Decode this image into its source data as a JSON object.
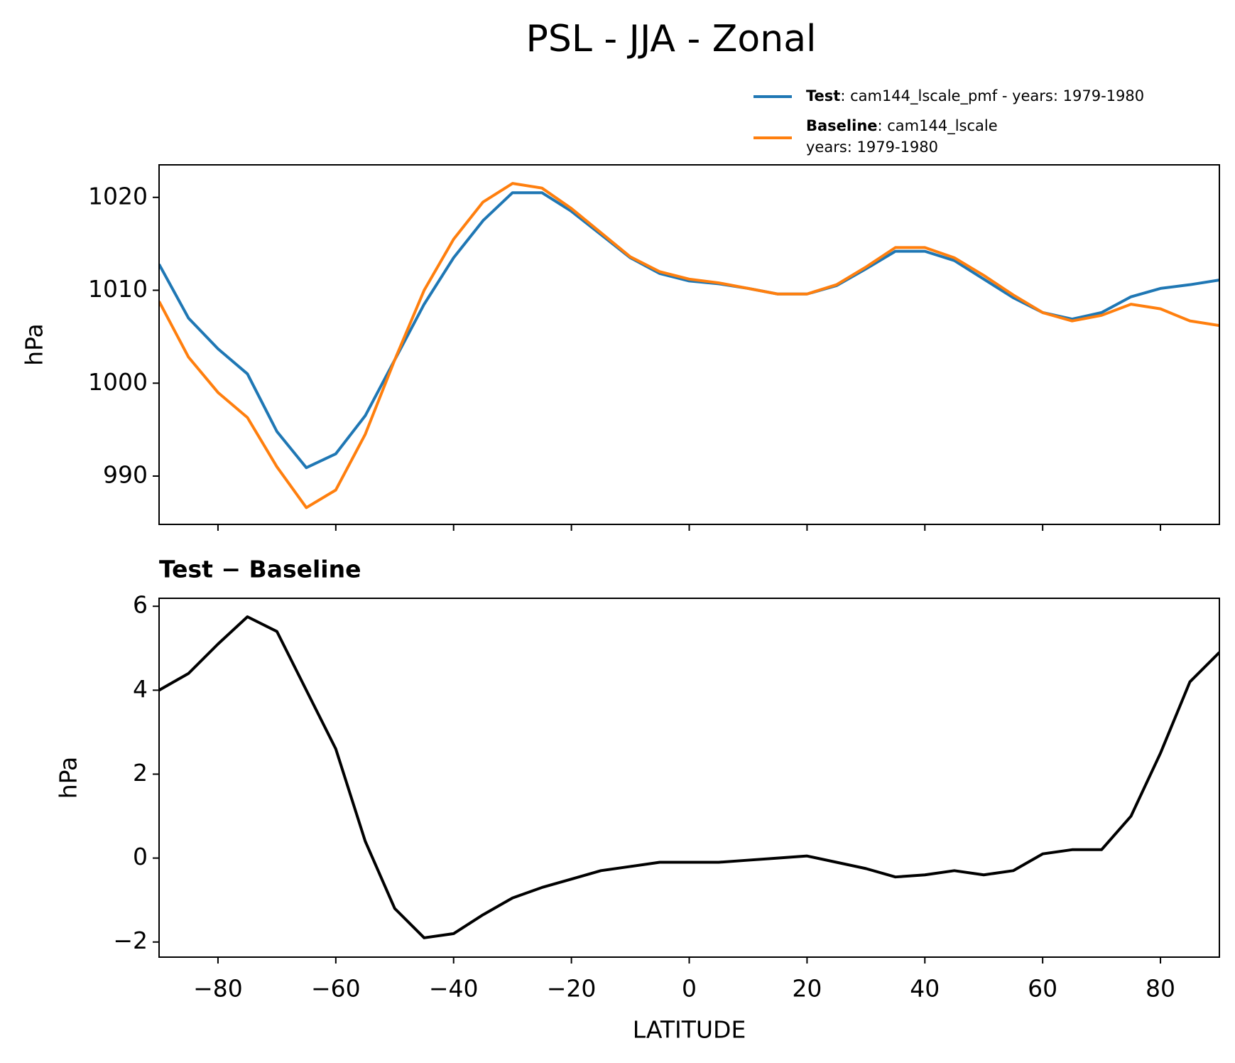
{
  "title": "PSL - JJA - Zonal",
  "chart_data": [
    {
      "type": "line",
      "ylabel": "hPa",
      "x": [
        -90,
        -85,
        -80,
        -75,
        -70,
        -65,
        -60,
        -55,
        -50,
        -45,
        -40,
        -35,
        -30,
        -25,
        -20,
        -15,
        -10,
        -5,
        0,
        5,
        10,
        15,
        20,
        25,
        30,
        35,
        40,
        45,
        50,
        55,
        60,
        65,
        70,
        75,
        80,
        85,
        90
      ],
      "series": [
        {
          "name": "Test",
          "detail": [
            ": cam144_lscale_pmf - years: 1979-1980"
          ],
          "color": "#1f77b4",
          "values": [
            1012.8,
            1007.0,
            1003.7,
            1001.0,
            994.8,
            990.9,
            992.4,
            996.5,
            1002.5,
            1008.5,
            1013.5,
            1017.5,
            1020.5,
            1020.5,
            1018.5,
            1016.0,
            1013.5,
            1011.8,
            1011.0,
            1010.7,
            1010.2,
            1009.6,
            1009.6,
            1010.5,
            1012.3,
            1014.2,
            1014.2,
            1013.2,
            1011.2,
            1009.2,
            1007.6,
            1006.9,
            1007.6,
            1009.3,
            1010.2,
            1010.6,
            1011.1
          ]
        },
        {
          "name": "Baseline",
          "detail": [
            ": cam144_lscale",
            "years: 1979-1980"
          ],
          "color": "#ff7f0e",
          "values": [
            1008.8,
            1002.8,
            999.0,
            996.3,
            991.0,
            986.6,
            988.5,
            994.5,
            1002.5,
            1010.0,
            1015.5,
            1019.5,
            1021.5,
            1021.0,
            1018.8,
            1016.2,
            1013.6,
            1012.0,
            1011.2,
            1010.8,
            1010.2,
            1009.6,
            1009.6,
            1010.6,
            1012.5,
            1014.6,
            1014.6,
            1013.5,
            1011.6,
            1009.5,
            1007.6,
            1006.7,
            1007.3,
            1008.5,
            1008.0,
            1006.7,
            1006.2
          ]
        }
      ],
      "xlim": [
        -90,
        90
      ],
      "xticks": [
        -80,
        -60,
        -40,
        -20,
        0,
        20,
        40,
        60,
        80
      ],
      "ylim": [
        984.8,
        1023.5
      ],
      "yticks": [
        990,
        1000,
        1010,
        1020
      ]
    },
    {
      "type": "line",
      "title": "Test − Baseline",
      "ylabel": "hPa",
      "xlabel": "LATITUDE",
      "x": [
        -90,
        -85,
        -80,
        -75,
        -70,
        -65,
        -60,
        -55,
        -50,
        -45,
        -40,
        -35,
        -30,
        -25,
        -20,
        -15,
        -10,
        -5,
        0,
        5,
        10,
        15,
        20,
        25,
        30,
        35,
        40,
        45,
        50,
        55,
        60,
        65,
        70,
        75,
        80,
        85,
        90
      ],
      "series": [
        {
          "color": "#000000",
          "values": [
            4.0,
            4.4,
            5.1,
            5.75,
            5.4,
            4.0,
            2.6,
            0.4,
            -1.2,
            -1.9,
            -1.8,
            -1.35,
            -0.95,
            -0.7,
            -0.5,
            -0.3,
            -0.2,
            -0.1,
            -0.1,
            -0.1,
            -0.05,
            0.0,
            0.05,
            -0.1,
            -0.25,
            -0.45,
            -0.4,
            -0.3,
            -0.4,
            -0.3,
            0.1,
            0.2,
            0.2,
            1.0,
            2.5,
            4.2,
            4.9
          ]
        }
      ],
      "xlim": [
        -90,
        90
      ],
      "xticks": [
        {
          "value": -80,
          "label": "−80"
        },
        {
          "value": -60,
          "label": "−60"
        },
        {
          "value": -40,
          "label": "−40"
        },
        {
          "value": -20,
          "label": "−20"
        },
        0,
        20,
        40,
        60,
        80
      ],
      "ylim": [
        -2.36,
        6.19
      ],
      "yticks": [
        {
          "value": -2,
          "label": "−2"
        },
        0,
        2,
        4,
        6
      ]
    }
  ]
}
